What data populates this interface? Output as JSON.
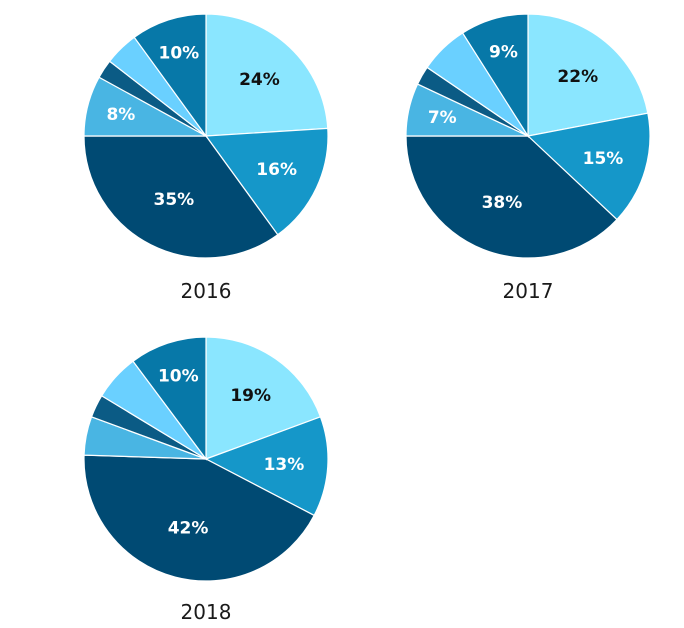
{
  "chart_data": [
    {
      "type": "pie",
      "title": "2016",
      "slices": [
        {
          "value": 24,
          "label": "24%",
          "color": "#8ae6ff",
          "text_color": "#111111"
        },
        {
          "value": 16,
          "label": "16%",
          "color": "#1597c9",
          "text_color": "#ffffff"
        },
        {
          "value": 35,
          "label": "35%",
          "color": "#004a73",
          "text_color": "#ffffff"
        },
        {
          "value": 8,
          "label": "8%",
          "color": "#49b5e3",
          "text_color": "#ffffff"
        },
        {
          "value": 2.5,
          "label": "",
          "color": "#0b5b85",
          "text_color": "#ffffff"
        },
        {
          "value": 4.5,
          "label": "",
          "color": "#6ad0ff",
          "text_color": "#ffffff"
        },
        {
          "value": 10,
          "label": "10%",
          "color": "#0778a8",
          "text_color": "#ffffff"
        }
      ]
    },
    {
      "type": "pie",
      "title": "2017",
      "slices": [
        {
          "value": 22,
          "label": "22%",
          "color": "#8ae6ff",
          "text_color": "#111111"
        },
        {
          "value": 15,
          "label": "15%",
          "color": "#1597c9",
          "text_color": "#ffffff"
        },
        {
          "value": 38,
          "label": "38%",
          "color": "#004a73",
          "text_color": "#ffffff"
        },
        {
          "value": 7,
          "label": "7%",
          "color": "#49b5e3",
          "text_color": "#ffffff"
        },
        {
          "value": 2.5,
          "label": "",
          "color": "#0b5b85",
          "text_color": "#ffffff"
        },
        {
          "value": 6.5,
          "label": "",
          "color": "#6ad0ff",
          "text_color": "#ffffff"
        },
        {
          "value": 9,
          "label": "9%",
          "color": "#0778a8",
          "text_color": "#ffffff"
        }
      ]
    },
    {
      "type": "pie",
      "title": "2018",
      "slices": [
        {
          "value": 19,
          "label": "19%",
          "color": "#8ae6ff",
          "text_color": "#111111"
        },
        {
          "value": 13,
          "label": "13%",
          "color": "#1597c9",
          "text_color": "#ffffff"
        },
        {
          "value": 42,
          "label": "42%",
          "color": "#004a73",
          "text_color": "#ffffff"
        },
        {
          "value": 5,
          "label": "",
          "color": "#49b5e3",
          "text_color": "#ffffff"
        },
        {
          "value": 3,
          "label": "",
          "color": "#0b5b85",
          "text_color": "#ffffff"
        },
        {
          "value": 6,
          "label": "",
          "color": "#6ad0ff",
          "text_color": "#ffffff"
        },
        {
          "value": 10,
          "label": "10%",
          "color": "#0778a8",
          "text_color": "#ffffff"
        }
      ]
    }
  ]
}
